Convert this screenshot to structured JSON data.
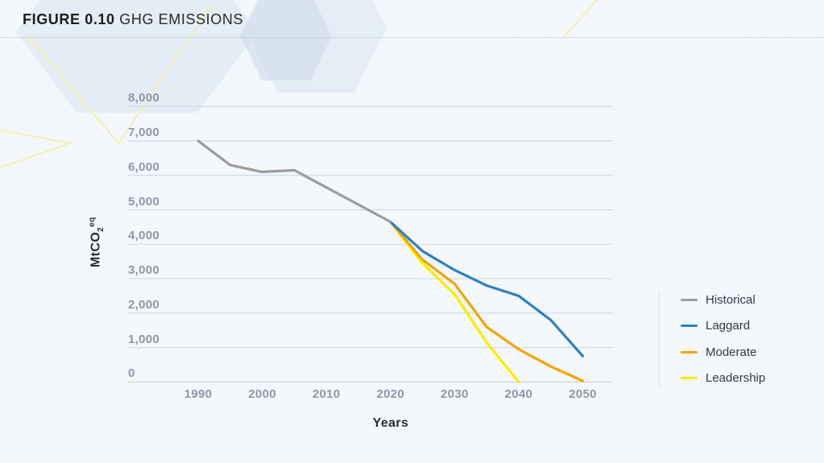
{
  "figure": {
    "label": "FIGURE 0.10",
    "title": "GHG EMISSIONS"
  },
  "chart_data": {
    "type": "line",
    "title": "FIGURE 0.10 GHG EMISSIONS",
    "xlabel": "Years",
    "ylabel": "MtCO2eq",
    "ylabel_parts": {
      "base": "MtCO",
      "sub": "2",
      "sup": "eq"
    },
    "grid": true,
    "legend_position": "right",
    "xlim": [
      1984,
      2055
    ],
    "ylim": [
      0,
      8000
    ],
    "x_ticks": [
      {
        "label": "1990",
        "value": 1990
      },
      {
        "label": "2000",
        "value": 2000
      },
      {
        "label": "2010",
        "value": 2010
      },
      {
        "label": "2020",
        "value": 2020
      },
      {
        "label": "2030",
        "value": 2030
      },
      {
        "label": "2040",
        "value": 2040
      },
      {
        "label": "2050",
        "value": 2050
      }
    ],
    "y_ticks": [
      {
        "label": "8,000",
        "value": 8000
      },
      {
        "label": "7,000",
        "value": 7000
      },
      {
        "label": "6,000",
        "value": 6000
      },
      {
        "label": "5,000",
        "value": 5000
      },
      {
        "label": "4,000",
        "value": 4000
      },
      {
        "label": "3,000",
        "value": 3000
      },
      {
        "label": "2,000",
        "value": 2000
      },
      {
        "label": "1,000",
        "value": 1000
      },
      {
        "label": "0",
        "value": 0
      }
    ],
    "series": [
      {
        "name": "Historical",
        "color": "#9c9c9c",
        "x": [
          1990,
          1995,
          2000,
          2005,
          2010,
          2015,
          2020
        ],
        "values": [
          7000,
          6300,
          6100,
          6150,
          5650,
          5150,
          4650
        ]
      },
      {
        "name": "Laggard",
        "color": "#2f80c1",
        "x": [
          2020,
          2025,
          2030,
          2035,
          2040,
          2045,
          2050
        ],
        "values": [
          4650,
          3800,
          3250,
          2800,
          2500,
          1800,
          750
        ]
      },
      {
        "name": "Moderate",
        "color": "#f1a604",
        "x": [
          2020,
          2025,
          2030,
          2035,
          2040,
          2045,
          2050
        ],
        "values": [
          4650,
          3550,
          2850,
          1600,
          950,
          450,
          30
        ]
      },
      {
        "name": "Leadership",
        "color": "#f8ec00",
        "x": [
          2020,
          2025,
          2030,
          2035,
          2040
        ],
        "values": [
          4650,
          3450,
          2550,
          1150,
          0
        ]
      }
    ]
  },
  "colors": {
    "background": "#f4f7fb",
    "gridline": "#ccdaeb",
    "axis_line": "#c2cfdf",
    "tick_label": "#8d96a8",
    "axis_title": "#22303e",
    "title_text": "#1d1d1b",
    "legend_text": "#2c3b4b",
    "separator": "#b7c1cf",
    "decor_hex": "#dfe8f3",
    "decor_line": "#f5ee9e"
  }
}
